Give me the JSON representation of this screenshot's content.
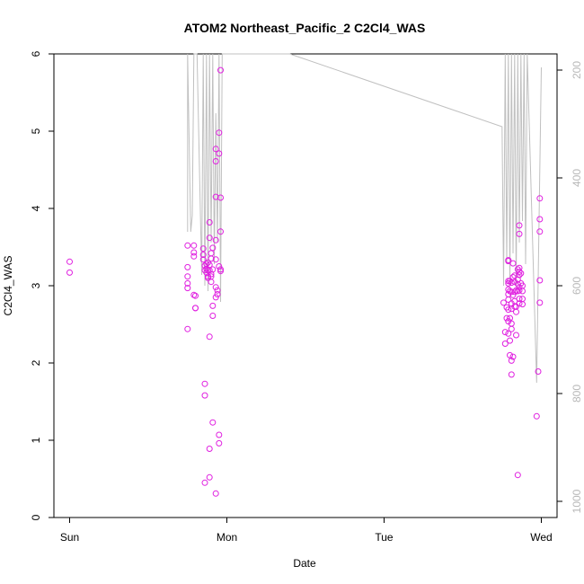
{
  "chart_data": {
    "type": "scatter",
    "title": "ATOM2 Northeast_Pacific_2 C2Cl4_WAS",
    "xlabel": "Date",
    "ylabel": "C2Cl4_WAS",
    "ylim": [
      0,
      6
    ],
    "y_ticks": [
      "0",
      "1",
      "2",
      "3",
      "4",
      "5",
      "6"
    ],
    "x_ticks": [
      "Sun",
      "Mon",
      "Tue",
      "Wed"
    ],
    "x_tick_days": [
      0,
      1,
      2,
      3
    ],
    "xlim_days": [
      -0.1,
      3.1
    ],
    "y2_ticks": [
      "200",
      "400",
      "600",
      "800",
      "1000"
    ],
    "y2lim": [
      1030,
      170
    ],
    "point_color": "#e020e0",
    "line_color": "#c0c0c0",
    "grid": false,
    "points": [
      [
        0.0,
        3.31
      ],
      [
        0.0,
        3.17
      ],
      [
        0.75,
        3.52
      ],
      [
        0.75,
        3.24
      ],
      [
        0.75,
        3.12
      ],
      [
        0.75,
        3.03
      ],
      [
        0.75,
        2.97
      ],
      [
        0.75,
        2.44
      ],
      [
        0.79,
        3.52
      ],
      [
        0.79,
        3.43
      ],
      [
        0.79,
        3.38
      ],
      [
        0.79,
        2.88
      ],
      [
        0.8,
        2.87
      ],
      [
        0.8,
        2.71
      ],
      [
        0.8,
        2.71
      ],
      [
        0.85,
        3.48
      ],
      [
        0.85,
        3.4
      ],
      [
        0.85,
        3.34
      ],
      [
        0.86,
        3.26
      ],
      [
        0.86,
        3.2
      ],
      [
        0.86,
        1.73
      ],
      [
        0.86,
        1.58
      ],
      [
        0.86,
        0.45
      ],
      [
        0.87,
        3.28
      ],
      [
        0.87,
        3.22
      ],
      [
        0.87,
        3.17
      ],
      [
        0.88,
        3.3
      ],
      [
        0.88,
        3.2
      ],
      [
        0.88,
        3.12
      ],
      [
        0.88,
        3.1
      ],
      [
        0.89,
        3.82
      ],
      [
        0.89,
        3.62
      ],
      [
        0.89,
        3.27
      ],
      [
        0.89,
        3.2
      ],
      [
        0.89,
        2.34
      ],
      [
        0.89,
        0.89
      ],
      [
        0.89,
        0.52
      ],
      [
        0.9,
        3.42
      ],
      [
        0.9,
        3.35
      ],
      [
        0.9,
        3.15
      ],
      [
        0.9,
        3.12
      ],
      [
        0.9,
        3.05
      ],
      [
        0.91,
        3.49
      ],
      [
        0.91,
        3.21
      ],
      [
        0.91,
        2.74
      ],
      [
        0.91,
        2.61
      ],
      [
        0.91,
        1.23
      ],
      [
        0.93,
        4.77
      ],
      [
        0.93,
        4.61
      ],
      [
        0.93,
        4.15
      ],
      [
        0.93,
        3.59
      ],
      [
        0.93,
        3.34
      ],
      [
        0.93,
        2.98
      ],
      [
        0.93,
        2.85
      ],
      [
        0.93,
        0.31
      ],
      [
        0.94,
        2.94
      ],
      [
        0.94,
        2.89
      ],
      [
        0.95,
        4.98
      ],
      [
        0.95,
        4.71
      ],
      [
        0.95,
        3.25
      ],
      [
        0.95,
        1.07
      ],
      [
        0.95,
        0.96
      ],
      [
        0.96,
        5.79
      ],
      [
        0.96,
        4.14
      ],
      [
        0.96,
        3.7
      ],
      [
        0.96,
        3.21
      ],
      [
        0.96,
        3.19
      ],
      [
        2.76,
        2.78
      ],
      [
        2.77,
        2.4
      ],
      [
        2.77,
        2.25
      ],
      [
        2.78,
        2.72
      ],
      [
        2.78,
        2.58
      ],
      [
        2.79,
        3.33
      ],
      [
        2.79,
        3.32
      ],
      [
        2.79,
        3.06
      ],
      [
        2.79,
        3.03
      ],
      [
        2.79,
        2.95
      ],
      [
        2.79,
        2.89
      ],
      [
        2.79,
        2.82
      ],
      [
        2.79,
        2.69
      ],
      [
        2.79,
        2.54
      ],
      [
        2.79,
        2.38
      ],
      [
        2.8,
        3.06
      ],
      [
        2.8,
        2.93
      ],
      [
        2.8,
        2.58
      ],
      [
        2.8,
        2.29
      ],
      [
        2.8,
        2.1
      ],
      [
        2.81,
        3.04
      ],
      [
        2.81,
        2.92
      ],
      [
        2.81,
        2.77
      ],
      [
        2.81,
        2.7
      ],
      [
        2.81,
        2.51
      ],
      [
        2.81,
        2.44
      ],
      [
        2.81,
        2.03
      ],
      [
        2.81,
        1.85
      ],
      [
        2.82,
        3.29
      ],
      [
        2.82,
        3.11
      ],
      [
        2.82,
        2.88
      ],
      [
        2.82,
        2.08
      ],
      [
        2.83,
        3.13
      ],
      [
        2.83,
        3.05
      ],
      [
        2.83,
        2.92
      ],
      [
        2.83,
        2.8
      ],
      [
        2.83,
        2.73
      ],
      [
        2.84,
        2.94
      ],
      [
        2.84,
        2.73
      ],
      [
        2.84,
        2.66
      ],
      [
        2.84,
        2.36
      ],
      [
        2.85,
        3.21
      ],
      [
        2.85,
        3.08
      ],
      [
        2.85,
        3.02
      ],
      [
        2.85,
        2.93
      ],
      [
        2.85,
        0.55
      ],
      [
        2.86,
        3.78
      ],
      [
        2.86,
        3.67
      ],
      [
        2.86,
        3.23
      ],
      [
        2.86,
        3.18
      ],
      [
        2.86,
        3.14
      ],
      [
        2.86,
        2.98
      ],
      [
        2.86,
        2.94
      ],
      [
        2.86,
        2.83
      ],
      [
        2.86,
        2.77
      ],
      [
        2.87,
        3.16
      ],
      [
        2.87,
        3.03
      ],
      [
        2.88,
        3.0
      ],
      [
        2.88,
        2.93
      ],
      [
        2.88,
        2.83
      ],
      [
        2.88,
        2.76
      ],
      [
        2.97,
        1.31
      ],
      [
        2.98,
        1.89
      ],
      [
        2.99,
        4.13
      ],
      [
        2.99,
        3.86
      ],
      [
        2.99,
        3.7
      ],
      [
        2.99,
        3.07
      ],
      [
        2.99,
        2.78
      ]
    ],
    "altitude_trace": [
      [
        0.75,
        500
      ],
      [
        0.75,
        170
      ],
      [
        0.77,
        500
      ],
      [
        0.78,
        470
      ],
      [
        0.79,
        170
      ],
      [
        0.8,
        170
      ],
      [
        0.81,
        170
      ],
      [
        0.84,
        580
      ],
      [
        0.85,
        170
      ],
      [
        0.86,
        600
      ],
      [
        0.87,
        170
      ],
      [
        0.88,
        610
      ],
      [
        0.89,
        170
      ],
      [
        0.9,
        520
      ],
      [
        0.91,
        170
      ],
      [
        0.92,
        560
      ],
      [
        0.93,
        280
      ],
      [
        0.94,
        520
      ],
      [
        0.95,
        170
      ],
      [
        0.96,
        630
      ],
      [
        0.97,
        170
      ],
      [
        1.4,
        170
      ],
      [
        2.75,
        305
      ],
      [
        2.76,
        600
      ],
      [
        2.77,
        170
      ],
      [
        2.78,
        560
      ],
      [
        2.79,
        170
      ],
      [
        2.8,
        600
      ],
      [
        2.81,
        170
      ],
      [
        2.82,
        540
      ],
      [
        2.83,
        170
      ],
      [
        2.84,
        600
      ],
      [
        2.85,
        170
      ],
      [
        2.86,
        520
      ],
      [
        2.87,
        170
      ],
      [
        2.88,
        480
      ],
      [
        2.89,
        170
      ],
      [
        2.9,
        560
      ],
      [
        2.91,
        170
      ],
      [
        2.97,
        780
      ],
      [
        3.0,
        195
      ]
    ]
  }
}
